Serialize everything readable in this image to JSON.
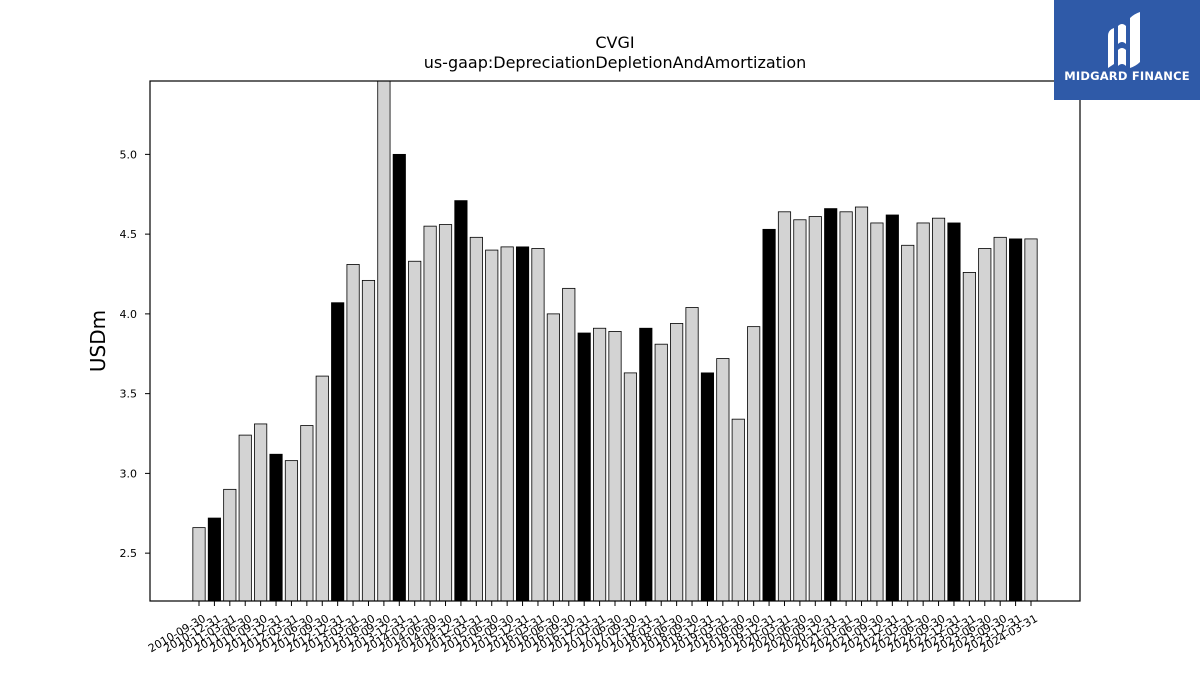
{
  "brand": {
    "name": "MIDGARD FINANCE",
    "color": "#2f5aa8"
  },
  "chart_data": {
    "type": "bar",
    "title": "CVGI",
    "subtitle": "us-gaap:DepreciationDepletionAndAmortization",
    "xlabel": "",
    "ylabel": "USDm",
    "ylim": [
      2.2,
      5.46
    ],
    "yticks": [
      2.5,
      3.0,
      3.5,
      4.0,
      4.5,
      5.0
    ],
    "ytick_labels": [
      "2.5",
      "3.0",
      "3.5",
      "4.0",
      "4.5",
      "5.0"
    ],
    "grid": false,
    "colors": {
      "quarter": "#d3d3d3",
      "year_end": "#000000",
      "edge": "#000000"
    },
    "categories": [
      "2010-09-30",
      "2010-12-31",
      "2011-03-31",
      "2011-06-30",
      "2011-09-30",
      "2011-12-31",
      "2012-03-31",
      "2012-06-30",
      "2012-09-30",
      "2012-12-31",
      "2013-03-31",
      "2013-06-30",
      "2013-09-30",
      "2013-12-31",
      "2014-03-31",
      "2014-06-30",
      "2014-09-30",
      "2014-12-31",
      "2015-03-31",
      "2015-06-30",
      "2015-09-30",
      "2015-12-31",
      "2016-03-31",
      "2016-06-30",
      "2016-09-30",
      "2016-12-31",
      "2017-03-31",
      "2017-06-30",
      "2017-09-30",
      "2017-12-31",
      "2018-03-31",
      "2018-06-30",
      "2018-09-30",
      "2018-12-31",
      "2019-03-31",
      "2019-06-30",
      "2019-09-30",
      "2019-12-31",
      "2020-03-31",
      "2020-06-30",
      "2020-09-30",
      "2020-12-31",
      "2021-03-31",
      "2021-06-30",
      "2021-09-30",
      "2021-12-31",
      "2022-03-31",
      "2022-06-30",
      "2022-09-30",
      "2022-12-31",
      "2023-03-31",
      "2023-06-30",
      "2023-09-30",
      "2023-12-31",
      "2024-03-31"
    ],
    "values": [
      2.66,
      2.72,
      2.9,
      3.24,
      3.31,
      3.12,
      3.08,
      3.3,
      3.61,
      4.07,
      4.31,
      4.21,
      5.46,
      5.0,
      4.33,
      4.55,
      4.56,
      4.71,
      4.48,
      4.4,
      4.42,
      4.42,
      4.41,
      4.0,
      4.16,
      3.88,
      3.91,
      3.89,
      3.63,
      3.91,
      3.81,
      3.94,
      4.04,
      3.63,
      3.72,
      3.34,
      3.92,
      4.53,
      4.64,
      4.59,
      4.61,
      4.66,
      4.64,
      4.67,
      4.57,
      4.62,
      4.43,
      4.57,
      4.6,
      4.57,
      4.26,
      4.41,
      4.48,
      4.47,
      4.47
    ]
  }
}
